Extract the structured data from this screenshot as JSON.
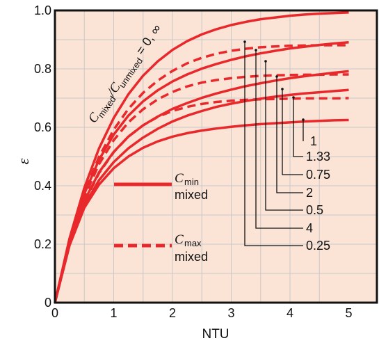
{
  "chart_data": {
    "type": "line",
    "xlabel": "NTU",
    "ylabel": "ε",
    "xlim": [
      0,
      5
    ],
    "ylim": [
      0,
      1.0
    ],
    "x_ticks": [
      "0",
      "1",
      "2",
      "3",
      "4",
      "5"
    ],
    "y_ticks": [
      "0",
      "0.2",
      "0.4",
      "0.6",
      "0.8",
      "1.0"
    ],
    "grid": true,
    "colors": {
      "background": "#fbe3d6",
      "grid": "#c9c9c9",
      "curve": "#e8282b",
      "frame": "#111111",
      "text": "#111111"
    },
    "annotation": {
      "c_main": "C",
      "mixed_sub": "mixed",
      "slash": "/",
      "c_unmixed": "C",
      "unmixed_sub": "unmixed",
      "suffix": " = 0, ∞"
    },
    "legend": [
      {
        "style": "solid",
        "symbol": "C",
        "subscript": "min",
        "text": "mixed"
      },
      {
        "style": "dashed",
        "symbol": "C",
        "subscript": "max",
        "text": "mixed"
      }
    ],
    "series": [
      {
        "label": "0, ∞",
        "style": "solid",
        "ntu": [
          0,
          0.25,
          0.5,
          0.75,
          1,
          1.25,
          1.5,
          1.75,
          2,
          2.25,
          2.5,
          2.75,
          3,
          3.25,
          3.5,
          3.75,
          4,
          4.25,
          4.5,
          4.75,
          5
        ],
        "epsilon": [
          0,
          0.221,
          0.393,
          0.528,
          0.632,
          0.713,
          0.777,
          0.826,
          0.865,
          0.895,
          0.918,
          0.936,
          0.95,
          0.961,
          0.97,
          0.976,
          0.982,
          0.986,
          0.989,
          0.991,
          0.993
        ]
      },
      {
        "label": "0.25",
        "style": "solid",
        "ntu": [
          0,
          0.25,
          0.5,
          0.75,
          1,
          1.25,
          1.5,
          1.75,
          2,
          2.25,
          2.5,
          2.75,
          3,
          3.25,
          3.5,
          3.75,
          4,
          4.25,
          4.5,
          4.75,
          5
        ],
        "epsilon": [
          0,
          0.215,
          0.373,
          0.489,
          0.575,
          0.64,
          0.689,
          0.727,
          0.757,
          0.781,
          0.801,
          0.817,
          0.831,
          0.843,
          0.853,
          0.862,
          0.87,
          0.876,
          0.882,
          0.887,
          0.891
        ]
      },
      {
        "label": "0.25",
        "style": "dashed",
        "ntu": [
          0,
          0.25,
          0.5,
          0.75,
          1,
          1.25,
          1.5,
          1.75,
          2,
          2.25,
          2.5,
          2.75,
          3,
          3.25,
          3.5,
          3.75,
          4,
          4.25,
          4.5,
          4.75,
          5
        ],
        "epsilon": [
          0,
          0.215,
          0.377,
          0.499,
          0.592,
          0.663,
          0.718,
          0.76,
          0.793,
          0.819,
          0.838,
          0.852,
          0.862,
          0.869,
          0.874,
          0.877,
          0.879,
          0.88,
          0.881,
          0.881,
          0.881
        ]
      },
      {
        "label": "0.5",
        "style": "solid",
        "ntu": [
          0,
          0.25,
          0.5,
          0.75,
          1,
          1.25,
          1.5,
          1.75,
          2,
          2.25,
          2.5,
          2.75,
          3,
          3.25,
          3.5,
          3.75,
          4,
          4.25,
          4.5,
          4.75,
          5
        ],
        "epsilon": [
          0,
          0.206,
          0.348,
          0.446,
          0.516,
          0.568,
          0.607,
          0.637,
          0.663,
          0.683,
          0.701,
          0.716,
          0.729,
          0.741,
          0.751,
          0.76,
          0.768,
          0.775,
          0.781,
          0.787,
          0.792
        ]
      },
      {
        "label": "0.5",
        "style": "dashed",
        "ntu": [
          0,
          0.25,
          0.5,
          0.75,
          1,
          1.25,
          1.5,
          1.75,
          2,
          2.25,
          2.5,
          2.75,
          3,
          3.25,
          3.5,
          3.75,
          4,
          4.25,
          4.5,
          4.75,
          5
        ],
        "epsilon": [
          0,
          0.208,
          0.362,
          0.474,
          0.556,
          0.617,
          0.662,
          0.696,
          0.721,
          0.74,
          0.753,
          0.762,
          0.768,
          0.773,
          0.776,
          0.778,
          0.779,
          0.78,
          0.78,
          0.781,
          0.781
        ]
      },
      {
        "label": "0.75",
        "style": "solid",
        "ntu": [
          0,
          0.25,
          0.5,
          0.75,
          1,
          1.25,
          1.5,
          1.75,
          2,
          2.25,
          2.5,
          2.75,
          3,
          3.25,
          3.5,
          3.75,
          4,
          4.25,
          4.5,
          4.75,
          5
        ],
        "epsilon": [
          0,
          0.202,
          0.333,
          0.419,
          0.481,
          0.528,
          0.565,
          0.595,
          0.62,
          0.64,
          0.656,
          0.67,
          0.681,
          0.69,
          0.698,
          0.705,
          0.711,
          0.716,
          0.72,
          0.724,
          0.728
        ]
      },
      {
        "label": "0.75",
        "style": "dashed",
        "ntu": [
          0,
          0.25,
          0.5,
          0.75,
          1,
          1.25,
          1.5,
          1.75,
          2,
          2.25,
          2.5,
          2.75,
          3,
          3.25,
          3.5,
          3.75,
          4,
          4.25,
          4.5,
          4.75,
          5
        ],
        "epsilon": [
          0,
          0.203,
          0.344,
          0.443,
          0.515,
          0.568,
          0.607,
          0.636,
          0.656,
          0.67,
          0.68,
          0.687,
          0.691,
          0.694,
          0.696,
          0.697,
          0.698,
          0.699,
          0.699,
          0.699,
          0.7
        ]
      },
      {
        "label": "1",
        "style": "solid",
        "ntu": [
          0,
          0.25,
          0.5,
          0.75,
          1,
          1.25,
          1.5,
          1.75,
          2,
          2.25,
          2.5,
          2.75,
          3,
          3.25,
          3.5,
          3.75,
          4,
          4.25,
          4.5,
          4.75,
          5
        ],
        "epsilon": [
          0,
          0.197,
          0.325,
          0.404,
          0.46,
          0.5,
          0.53,
          0.552,
          0.568,
          0.58,
          0.589,
          0.596,
          0.602,
          0.607,
          0.611,
          0.614,
          0.617,
          0.62,
          0.622,
          0.624,
          0.625
        ]
      }
    ],
    "pointer_labels": [
      "1",
      "1.33",
      "0.75",
      "2",
      "0.5",
      "4",
      "0.25"
    ]
  }
}
